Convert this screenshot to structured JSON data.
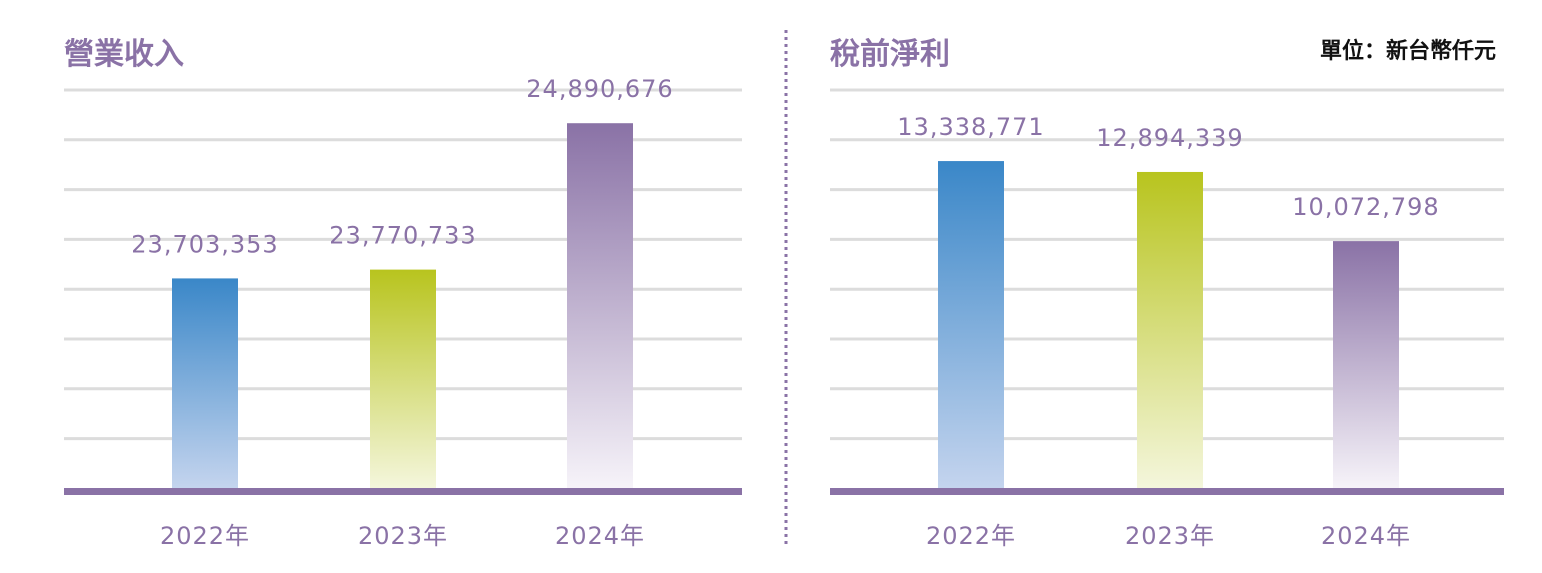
{
  "unit_label": "單位：新台幣仟元",
  "colors": {
    "accent": "#8a72a6",
    "blue": "#3a87c8",
    "green": "#b8c41e",
    "purple": "#8a72a6",
    "grid": "#dcdcdc"
  },
  "chart_data": [
    {
      "type": "bar",
      "title": "營業收入",
      "categories": [
        "2022年",
        "2023年",
        "2024年"
      ],
      "values": [
        23703353,
        23770733,
        24890676
      ],
      "value_labels": [
        "23,703,353",
        "23,770,733",
        "24,890,676"
      ],
      "bar_colors": [
        "blue",
        "green",
        "purple"
      ],
      "ylim": [
        22100000,
        25160000
      ],
      "grid": true
    },
    {
      "type": "bar",
      "title": "稅前淨利",
      "categories": [
        "2022年",
        "2023年",
        "2024年"
      ],
      "values": [
        13338771,
        12894339,
        10072798
      ],
      "value_labels": [
        "13,338,771",
        "12,894,339",
        "10,072,798"
      ],
      "bar_colors": [
        "blue",
        "green",
        "purple"
      ],
      "ylim": [
        0,
        16320000
      ],
      "grid": true
    }
  ]
}
